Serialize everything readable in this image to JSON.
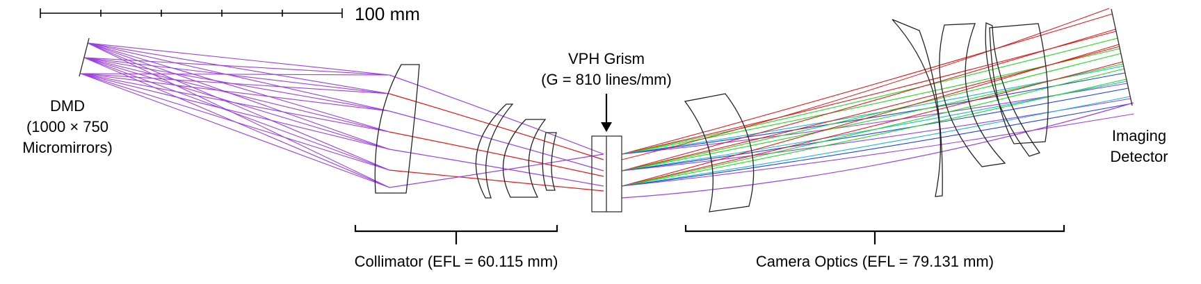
{
  "scale_bar": {
    "label": "100 mm"
  },
  "dmd": {
    "line1": "DMD",
    "line2": "(1000 × 750",
    "line3": "Micromirrors)"
  },
  "grism": {
    "line1": "VPH Grism",
    "line2": "(G = 810 lines/mm)"
  },
  "detector": {
    "line1": "Imaging",
    "line2": "Detector"
  },
  "collimator": {
    "label": "Collimator (EFL = 60.115 mm)"
  },
  "camera": {
    "label": "Camera Optics (EFL = 79.131 mm)"
  },
  "colors": {
    "violet": "#9b3fe0",
    "red": "#e01818",
    "green": "#1ed81e",
    "blue": "#1f3fe8",
    "cyan": "#12b8d8",
    "lens": "#222222"
  }
}
